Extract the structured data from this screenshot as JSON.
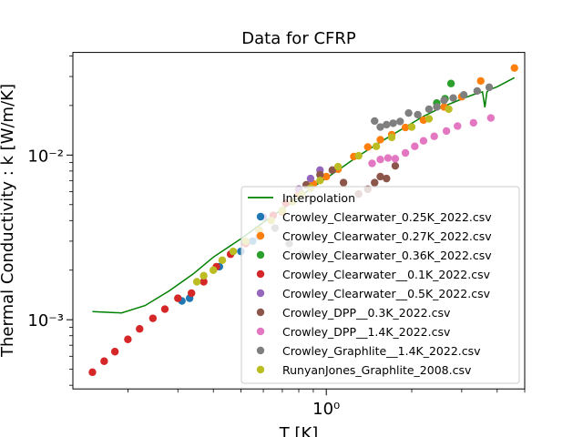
{
  "chart_data": {
    "type": "scatter",
    "title": "Data for CFRP",
    "xlabel": "T [K]",
    "ylabel": "Thermal Conductivity : k [W/m/K]",
    "xscale": "log",
    "yscale": "log",
    "xlim": [
      0.128,
      5.0
    ],
    "ylim": [
      0.00038,
      0.042
    ],
    "x_ticks": [
      {
        "value": 1.0,
        "label": "10⁰"
      }
    ],
    "y_ticks": [
      {
        "value": 0.001,
        "label": "10⁻³"
      },
      {
        "value": 0.01,
        "label": "10⁻²"
      }
    ],
    "grid": false,
    "legend_position": "lower-right",
    "interpolation": {
      "name": "Interpolation",
      "color": "#008000",
      "x": [
        0.15,
        0.19,
        0.23,
        0.28,
        0.34,
        0.4,
        0.5,
        0.6,
        0.75,
        0.9,
        1.1,
        1.3,
        1.6,
        1.9,
        2.2,
        2.6,
        3.0,
        3.3,
        3.55,
        3.62,
        3.68,
        3.75,
        4.0,
        4.6
      ],
      "y": [
        0.00112,
        0.0011,
        0.00122,
        0.0015,
        0.0019,
        0.0024,
        0.0031,
        0.0039,
        0.0051,
        0.0064,
        0.0081,
        0.0099,
        0.0124,
        0.0148,
        0.0172,
        0.0198,
        0.0219,
        0.0233,
        0.0242,
        0.0195,
        0.0242,
        0.0249,
        0.026,
        0.0295
      ]
    },
    "series": [
      {
        "name": "Crowley_Clearwater_0.25K_2022.csv",
        "color": "#1f77b4",
        "x": [
          0.31,
          0.33,
          0.42,
          0.5,
          0.55
        ],
        "y": [
          0.0013,
          0.00135,
          0.0021,
          0.0026,
          0.003
        ]
      },
      {
        "name": "Crowley_Clearwater_0.27K_2022.csv",
        "color": "#ff7f0e",
        "x": [
          0.7,
          0.8,
          0.9,
          1.0,
          1.1,
          1.25,
          1.4,
          1.55,
          1.7,
          1.9,
          2.2,
          2.6,
          3.0,
          3.5,
          4.6
        ],
        "y": [
          0.0045,
          0.0058,
          0.0067,
          0.0074,
          0.0082,
          0.0098,
          0.0112,
          0.0124,
          0.0133,
          0.0147,
          0.0163,
          0.0196,
          0.0226,
          0.0282,
          0.0338
        ]
      },
      {
        "name": "Crowley_Clearwater_0.36K_2022.csv",
        "color": "#2ca02c",
        "x": [
          2.45,
          2.62,
          2.75
        ],
        "y": [
          0.0207,
          0.022,
          0.0272
        ]
      },
      {
        "name": "Crowley_Clearwater__0.1K_2022.csv",
        "color": "#d62728",
        "x": [
          0.15,
          0.165,
          0.18,
          0.2,
          0.22,
          0.245,
          0.27,
          0.3,
          0.335,
          0.37,
          0.41,
          0.46,
          0.52,
          0.58,
          0.65,
          0.72,
          0.8
        ],
        "y": [
          0.00048,
          0.00056,
          0.00064,
          0.00076,
          0.00088,
          0.00102,
          0.00116,
          0.00135,
          0.00145,
          0.0017,
          0.0021,
          0.0025,
          0.0029,
          0.0035,
          0.0043,
          0.0051,
          0.0062
        ]
      },
      {
        "name": "Crowley_Clearwater__0.5K_2022.csv",
        "color": "#9467bd",
        "x": [
          0.6,
          0.7,
          0.8,
          0.88,
          0.95
        ],
        "y": [
          0.0042,
          0.0046,
          0.0062,
          0.0072,
          0.0081
        ]
      },
      {
        "name": "Crowley_DPP__0.3K_2022.csv",
        "color": "#8c564b",
        "x": [
          0.85,
          0.95,
          1.05,
          1.15,
          1.3,
          1.4,
          1.48,
          1.55,
          1.63,
          1.75
        ],
        "y": [
          0.0066,
          0.0076,
          0.0081,
          0.0068,
          0.0058,
          0.0062,
          0.0068,
          0.0074,
          0.0072,
          0.0086
        ]
      },
      {
        "name": "Crowley_DPP__1.4K_2022.csv",
        "color": "#e377c2",
        "x": [
          1.45,
          1.55,
          1.65,
          1.75,
          1.9,
          2.05,
          2.2,
          2.4,
          2.65,
          2.9,
          3.3,
          3.8
        ],
        "y": [
          0.0089,
          0.0094,
          0.0096,
          0.0095,
          0.0103,
          0.0113,
          0.0122,
          0.013,
          0.014,
          0.015,
          0.0157,
          0.0168
        ]
      },
      {
        "name": "Crowley_Graphlite__1.4K_2022.csv",
        "color": "#7f7f7f",
        "x": [
          0.58,
          0.66,
          0.74,
          0.82,
          1.48,
          1.55,
          1.63,
          1.72,
          1.82,
          1.95,
          2.1,
          2.3,
          2.45,
          2.6,
          2.8,
          3.05,
          3.4,
          3.75
        ],
        "y": [
          0.0032,
          0.0036,
          0.0029,
          0.0025,
          0.0161,
          0.0148,
          0.0153,
          0.0156,
          0.016,
          0.018,
          0.0176,
          0.019,
          0.0196,
          0.0215,
          0.0222,
          0.0232,
          0.0245,
          0.0258
        ]
      },
      {
        "name": "RunyanJones_Graphlite_2008.csv",
        "color": "#bcbd22",
        "x": [
          0.35,
          0.37,
          0.4,
          0.43,
          0.47,
          0.52,
          0.58,
          0.64,
          0.7,
          0.76,
          0.82,
          0.88,
          0.95,
          1.1,
          1.3,
          1.5,
          1.7,
          2.0,
          2.3,
          2.7
        ],
        "y": [
          0.0017,
          0.00185,
          0.002,
          0.0023,
          0.0026,
          0.003,
          0.0035,
          0.004,
          0.0046,
          0.0052,
          0.0058,
          0.0063,
          0.007,
          0.0085,
          0.0099,
          0.0113,
          0.0128,
          0.0148,
          0.0166,
          0.019
        ]
      }
    ]
  }
}
